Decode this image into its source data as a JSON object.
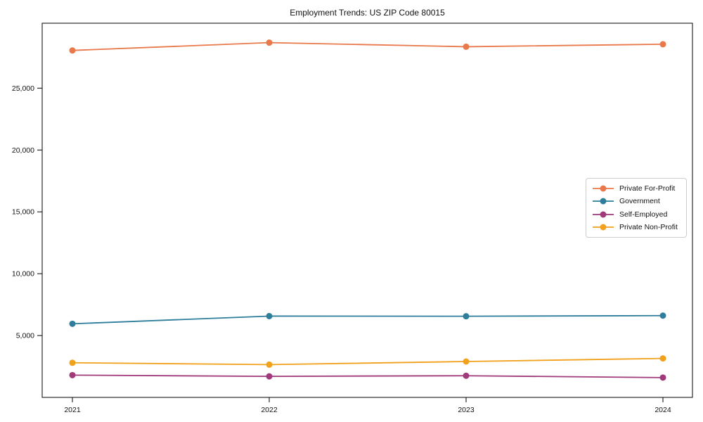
{
  "title": "Employment Trends: US ZIP Code 80015",
  "chart_data": {
    "type": "line",
    "title": "Employment Trends: US ZIP Code 80015",
    "categories": [
      "2021",
      "2022",
      "2023",
      "2024"
    ],
    "series": [
      {
        "name": "Private For-Profit",
        "color": "#e9784a",
        "values": [
          28050,
          28680,
          28350,
          28550
        ]
      },
      {
        "name": "Government",
        "color": "#2d7d9b",
        "values": [
          5950,
          6570,
          6560,
          6610
        ]
      },
      {
        "name": "Self-Employed",
        "color": "#a03a7a",
        "values": [
          1800,
          1700,
          1750,
          1600
        ]
      },
      {
        "name": "Private Non-Profit",
        "color": "#f2a11c",
        "values": [
          2800,
          2650,
          2900,
          3150
        ]
      }
    ],
    "xlabel": "",
    "ylabel": "",
    "ylim": [
      0,
      30250
    ],
    "yticks": [
      5000,
      10000,
      15000,
      20000,
      25000
    ],
    "ytick_labels": [
      "5,000",
      "10,000",
      "15,000",
      "20,000",
      "25,000"
    ],
    "grid": false,
    "marker": "circle",
    "legend_position": "center-right",
    "frame_color": "#000000"
  }
}
